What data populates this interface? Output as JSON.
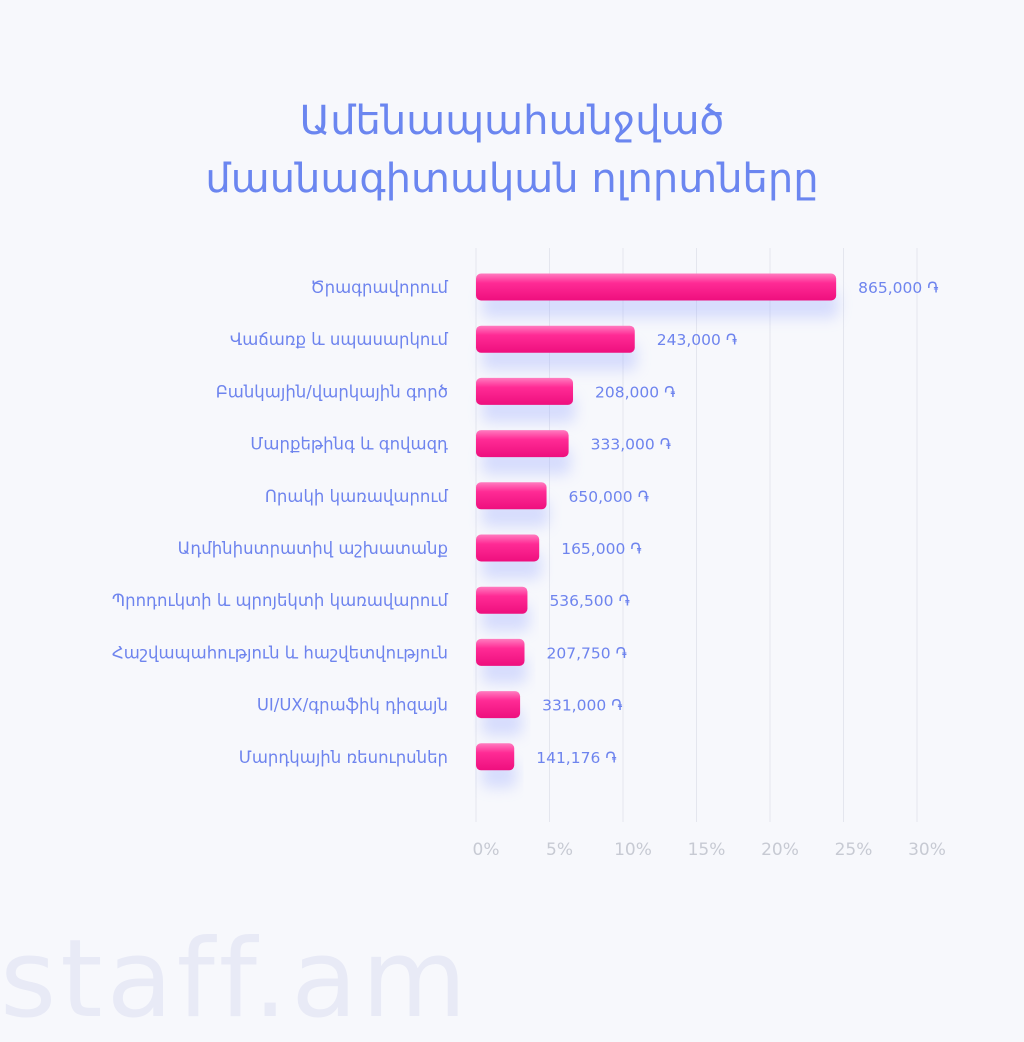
{
  "title": {
    "line1": "Ամենապահանջված",
    "line2": "մասնագիտական ոլորտները"
  },
  "brand": "staff.am",
  "colors": {
    "title": "#6b86f0",
    "bar": "#ff1f8e",
    "label": "#6e84ee",
    "tick": "#c7cad3",
    "background": "#f7f8fc"
  },
  "chart_data": {
    "type": "bar",
    "orientation": "horizontal",
    "categories": [
      "Ծրագրավորում",
      "Վաճառք և սպասարկում",
      "Բանկային/վարկային գործ",
      "Մարքեթինգ և գովազդ",
      "Որակի կառավարում",
      "Ադմինիստրատիվ աշխատանք",
      "Պրոդուկտի և պրոյեկտի կառավարում",
      "Հաշվապահություն և հաշվետվություն",
      "UI/UX/գրաֆիկ դիզայն",
      "Մարդկային ռեսուրսներ"
    ],
    "values": [
      24.5,
      10.8,
      6.6,
      6.3,
      4.8,
      4.3,
      3.5,
      3.3,
      3.0,
      2.6
    ],
    "value_labels": [
      "865,000 ֏",
      "243,000 ֏",
      "208,000 ֏",
      "333,000 ֏",
      "650,000 ֏",
      "165,000 ֏",
      "536,500 ֏",
      "207,750 ֏",
      "331,000 ֏",
      "141,176 ֏"
    ],
    "x_ticks": [
      "0%",
      "5%",
      "10%",
      "15%",
      "20%",
      "25%",
      "30%"
    ],
    "xlim": [
      0,
      30
    ],
    "grid": true
  }
}
